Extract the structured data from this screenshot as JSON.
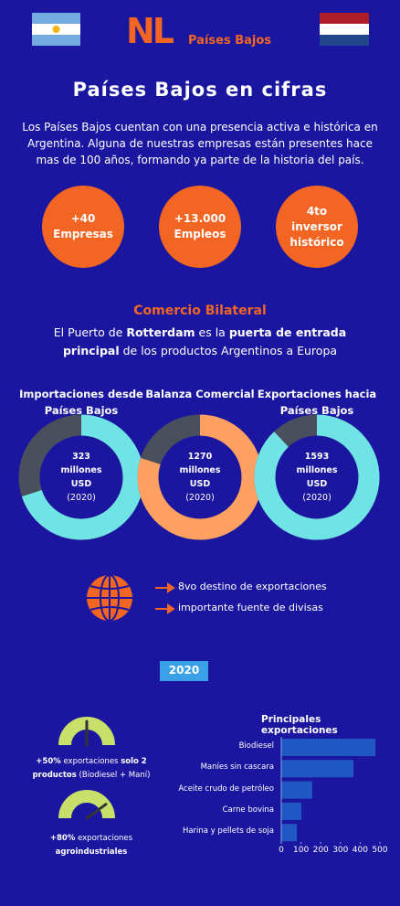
{
  "header": {
    "logo": "NL",
    "brand": "Países Bajos"
  },
  "title": "Países Bajos en cifras",
  "intro": "Los Países Bajos cuentan con una presencia activa e histórica en Argentina. Alguna de nuestras empresas están presentes hace mas de 100 años, formando ya parte de la historia del país.",
  "stats": [
    {
      "lines": [
        "+40",
        "Empresas"
      ]
    },
    {
      "lines": [
        "+13.000",
        "Empleos"
      ]
    },
    {
      "lines": [
        "4to",
        "inversor",
        "histórico"
      ]
    }
  ],
  "trade": {
    "title": "Comercio Bilateral",
    "subtitle": [
      {
        "text": "El Puerto de",
        "bold": false
      },
      {
        "text": "Rotterdam",
        "bold": true
      },
      {
        "text": "es la",
        "bold": false
      },
      {
        "text": "puerta de entrada principal",
        "bold": true
      },
      {
        "text": "de los productos Argentinos a Europa",
        "bold": false
      }
    ]
  },
  "donuts": [
    {
      "label": "Importaciones desde Países Bajos",
      "value": 323,
      "unit": "millones",
      "currency": "USD",
      "year": "(2020)",
      "ring_percent": 70,
      "color": "#6fe3e6",
      "track_color": "#4a4f5e"
    },
    {
      "label": "Balanza Comercial",
      "value": 1270,
      "unit": "millones",
      "currency": "USD",
      "year": "(2020)",
      "ring_percent": 80,
      "color": "#fda062",
      "track_color": "#4a4f5e"
    },
    {
      "label": "Exportaciones hacia Países Bajos",
      "value": 1593,
      "unit": "millones",
      "currency": "USD",
      "year": "(2020)",
      "ring_percent": 88,
      "color": "#6fe3e6",
      "track_color": "#4a4f5e"
    }
  ],
  "facts": [
    "8vo destino de exportaciones",
    "importante fuente de divisas"
  ],
  "year_badge": "2020",
  "gauges": [
    {
      "value": 50,
      "value_label": "+50%",
      "text": [
        {
          "text": "exportaciones",
          "bold": false
        },
        {
          "text": "solo 2 productos",
          "bold": true
        },
        {
          "text": "(Biodiesel + Maní)",
          "bold": false
        }
      ]
    },
    {
      "value": 80,
      "value_label": "+80%",
      "text": [
        {
          "text": "exportaciones",
          "bold": false
        },
        {
          "text": "agroindustriales",
          "bold": true
        }
      ]
    }
  ],
  "chart_data": {
    "type": "bar",
    "orientation": "horizontal",
    "title": "Principales exportaciones",
    "categories": [
      "Biodiesel",
      "Maníes sin cascara",
      "Aceite crudo de petróleo",
      "Carne bovina",
      "Harina y pellets de soja"
    ],
    "values": [
      477,
      366,
      157,
      102,
      79
    ],
    "color": "#1f57c3",
    "xlim": [
      0,
      500
    ],
    "xticks": [
      0,
      100,
      200,
      300,
      400,
      500
    ]
  }
}
